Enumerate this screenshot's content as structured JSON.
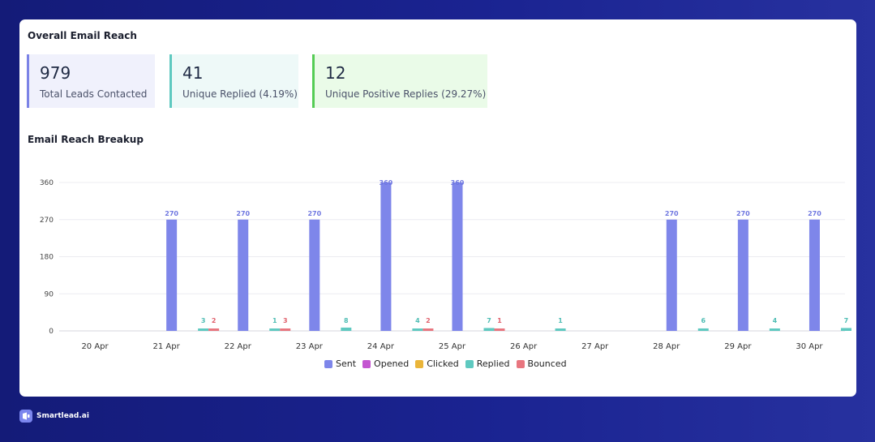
{
  "overview": {
    "title": "Overall Email Reach",
    "stats": [
      {
        "value": "979",
        "label": "Total Leads Contacted",
        "accent": "#7b83e6",
        "bg": "#f0f1fc"
      },
      {
        "value": "41",
        "label": "Unique Replied (4.19%)",
        "accent": "#5fc9c0",
        "bg": "#eef9f8"
      },
      {
        "value": "12",
        "label": "Unique Positive Replies (29.27%)",
        "accent": "#55cc55",
        "bg": "#eafbe8"
      }
    ]
  },
  "breakup": {
    "title": "Email Reach Breakup"
  },
  "chart_data": {
    "type": "bar",
    "categories": [
      "20 Apr",
      "21 Apr",
      "22 Apr",
      "23 Apr",
      "24 Apr",
      "25 Apr",
      "26 Apr",
      "27 Apr",
      "28 Apr",
      "29 Apr",
      "30 Apr"
    ],
    "y_ticks": [
      "0",
      "90",
      "180",
      "270",
      "360"
    ],
    "ylim": [
      0,
      360
    ],
    "grid": true,
    "legend_position": "bottom-center",
    "series": [
      {
        "name": "Sent",
        "color": "#7e86ea",
        "values": [
          0,
          270,
          270,
          270,
          360,
          360,
          0,
          0,
          270,
          270,
          270
        ]
      },
      {
        "name": "Opened",
        "color": "#c455d1",
        "values": [
          0,
          0,
          0,
          0,
          0,
          0,
          0,
          0,
          0,
          0,
          0
        ]
      },
      {
        "name": "Clicked",
        "color": "#eab53a",
        "values": [
          0,
          0,
          0,
          0,
          0,
          0,
          0,
          0,
          0,
          0,
          0
        ]
      },
      {
        "name": "Replied",
        "color": "#5fc9c0",
        "values": [
          0,
          3,
          1,
          8,
          4,
          7,
          1,
          0,
          6,
          4,
          7
        ]
      },
      {
        "name": "Bounced",
        "color": "#e8767f",
        "values": [
          0,
          2,
          3,
          0,
          2,
          1,
          0,
          0,
          0,
          0,
          0
        ]
      }
    ]
  },
  "brand": {
    "name": "Smartlead.ai",
    "logo_icon": "smartlead-logo-icon"
  }
}
